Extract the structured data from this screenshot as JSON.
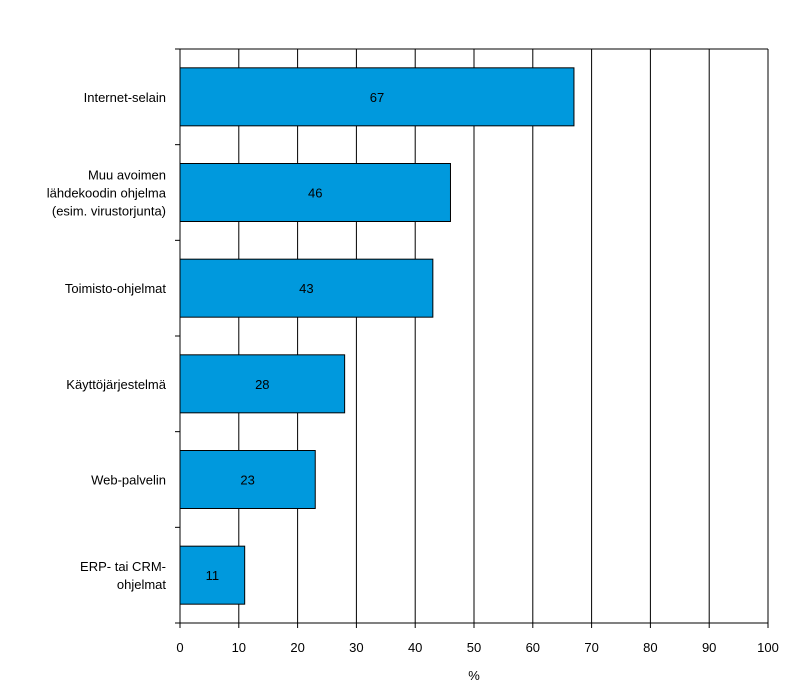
{
  "chart_data": {
    "type": "bar",
    "orientation": "horizontal",
    "categories": [
      [
        "Internet-selain"
      ],
      [
        "Muu avoimen",
        "lähdekoodin ohjelma",
        "(esim. virustorjunta)"
      ],
      [
        "Toimisto-ohjelmat"
      ],
      [
        "Käyttöjärjestelmä"
      ],
      [
        "Web-palvelin"
      ],
      [
        "ERP- tai CRM-",
        "ohjelmat"
      ]
    ],
    "values": [
      67,
      46,
      43,
      28,
      23,
      11
    ],
    "data_labels": [
      "67",
      "46",
      "43",
      "28",
      "23",
      "11"
    ],
    "xlabel": "%",
    "xlim": [
      0,
      100
    ],
    "xticks": [
      0,
      10,
      20,
      30,
      40,
      50,
      60,
      70,
      80,
      90,
      100
    ],
    "xtick_labels": [
      "0",
      "10",
      "20",
      "30",
      "40",
      "50",
      "60",
      "70",
      "80",
      "90",
      "100"
    ],
    "grid": "vertical",
    "legend": "none",
    "colors": {
      "bar_fill": "#0099dd",
      "bar_stroke": "#000000",
      "grid": "#000000",
      "axis": "#000000"
    }
  }
}
